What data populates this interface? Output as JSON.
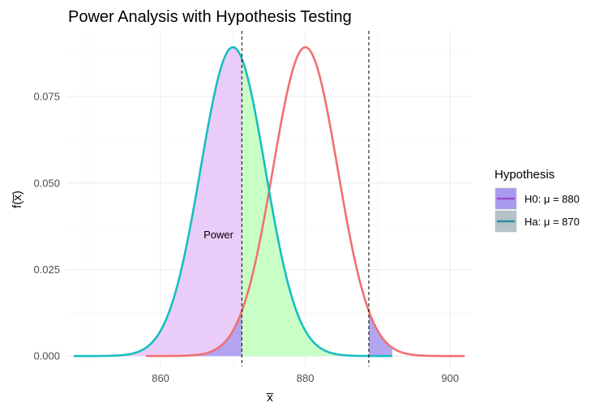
{
  "chart_data": {
    "type": "area",
    "title": "Power Analysis with Hypothesis Testing",
    "xlabel": "x̅",
    "ylabel": "f(x̅)",
    "xlim": [
      847,
      903
    ],
    "ylim": [
      -0.003,
      0.094
    ],
    "x_ticks": [
      860,
      880,
      900
    ],
    "y_ticks": [
      0.0,
      0.025,
      0.05,
      0.075
    ],
    "y_tick_labels": [
      "0.000",
      "0.025",
      "0.050",
      "0.075"
    ],
    "grid": true,
    "legend": {
      "title": "Hypothesis",
      "position": "right",
      "entries": [
        {
          "label": "H0: μ = 880",
          "line_color": "#9B4DCA",
          "fill_color": "#A99AF0"
        },
        {
          "label": "Ha: μ = 870",
          "line_color": "#2A8FA0",
          "fill_color": "#B5C2C6"
        }
      ]
    },
    "series": [
      {
        "mean": 880,
        "sd": 4.47,
        "x_range": [
          858,
          902
        ],
        "color": "#F07070"
      },
      {
        "mean": 870,
        "sd": 4.47,
        "x_range": [
          848,
          892
        ],
        "color": "#16BFC0"
      }
    ],
    "critical_values": [
      871.23,
      888.77
    ],
    "shaded_regions": [
      {
        "under": "Ha",
        "from": 848,
        "to": 871.23,
        "color": "#E9C9F8"
      },
      {
        "under": "Ha",
        "from": 871.23,
        "to": 892,
        "color": "#C6FFC4"
      },
      {
        "under": "H0",
        "from": 858,
        "to": 871.23,
        "color": "#B0A0F0"
      },
      {
        "under": "H0",
        "from": 888.77,
        "to": 892,
        "color": "#B0A0F0"
      }
    ],
    "annotations": [
      {
        "text": "Power",
        "x": 868,
        "y": 0.035
      }
    ]
  }
}
